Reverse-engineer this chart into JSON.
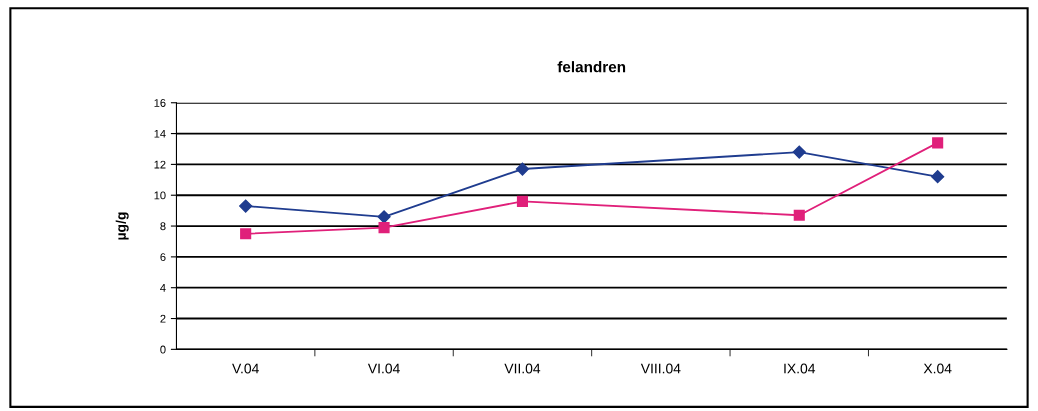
{
  "chart_data": {
    "type": "line",
    "title": "felandren",
    "ylabel": "µg/g",
    "categories": [
      "V.04",
      "VI.04",
      "VII.04",
      "VIII.04",
      "IX.04",
      "X.04"
    ],
    "series": [
      {
        "color": "#1f3c8f",
        "marker": "diamond",
        "values": [
          9.3,
          8.6,
          11.7,
          null,
          12.8,
          11.2
        ]
      },
      {
        "color": "#e0207a",
        "marker": "square",
        "values": [
          7.5,
          7.9,
          9.6,
          null,
          8.7,
          13.4
        ]
      }
    ],
    "ylim": [
      0,
      16
    ],
    "yticks": [
      0,
      2,
      4,
      6,
      8,
      10,
      12,
      14,
      16
    ],
    "grid": "y",
    "legend": false
  }
}
